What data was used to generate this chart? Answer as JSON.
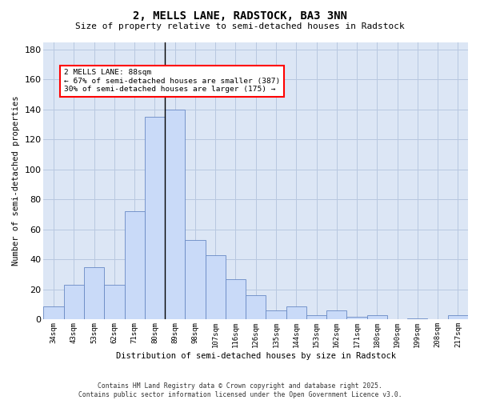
{
  "title_line1": "2, MELLS LANE, RADSTOCK, BA3 3NN",
  "title_line2": "Size of property relative to semi-detached houses in Radstock",
  "xlabel": "Distribution of semi-detached houses by size in Radstock",
  "ylabel": "Number of semi-detached properties",
  "categories": [
    "34sqm",
    "43sqm",
    "53sqm",
    "62sqm",
    "71sqm",
    "80sqm",
    "89sqm",
    "98sqm",
    "107sqm",
    "116sqm",
    "126sqm",
    "135sqm",
    "144sqm",
    "153sqm",
    "162sqm",
    "171sqm",
    "180sqm",
    "190sqm",
    "199sqm",
    "208sqm",
    "217sqm"
  ],
  "values": [
    9,
    23,
    35,
    23,
    72,
    135,
    140,
    53,
    43,
    27,
    16,
    6,
    9,
    3,
    6,
    2,
    3,
    0,
    1,
    0,
    3
  ],
  "bar_fill_color": "#c9daf8",
  "bar_edge_color": "#6889c4",
  "highlight_bar_index": 6,
  "highlight_line_color": "#000000",
  "annotation_text": "2 MELLS LANE: 88sqm\n← 67% of semi-detached houses are smaller (387)\n30% of semi-detached houses are larger (175) →",
  "annotation_box_color": "#ffffff",
  "annotation_box_edge": "#ff0000",
  "ylim": [
    0,
    185
  ],
  "yticks": [
    0,
    20,
    40,
    60,
    80,
    100,
    120,
    140,
    160,
    180
  ],
  "ax_bg_color": "#dce6f5",
  "background_color": "#ffffff",
  "grid_color": "#b8c8e0",
  "footer_line1": "Contains HM Land Registry data © Crown copyright and database right 2025.",
  "footer_line2": "Contains public sector information licensed under the Open Government Licence v3.0."
}
